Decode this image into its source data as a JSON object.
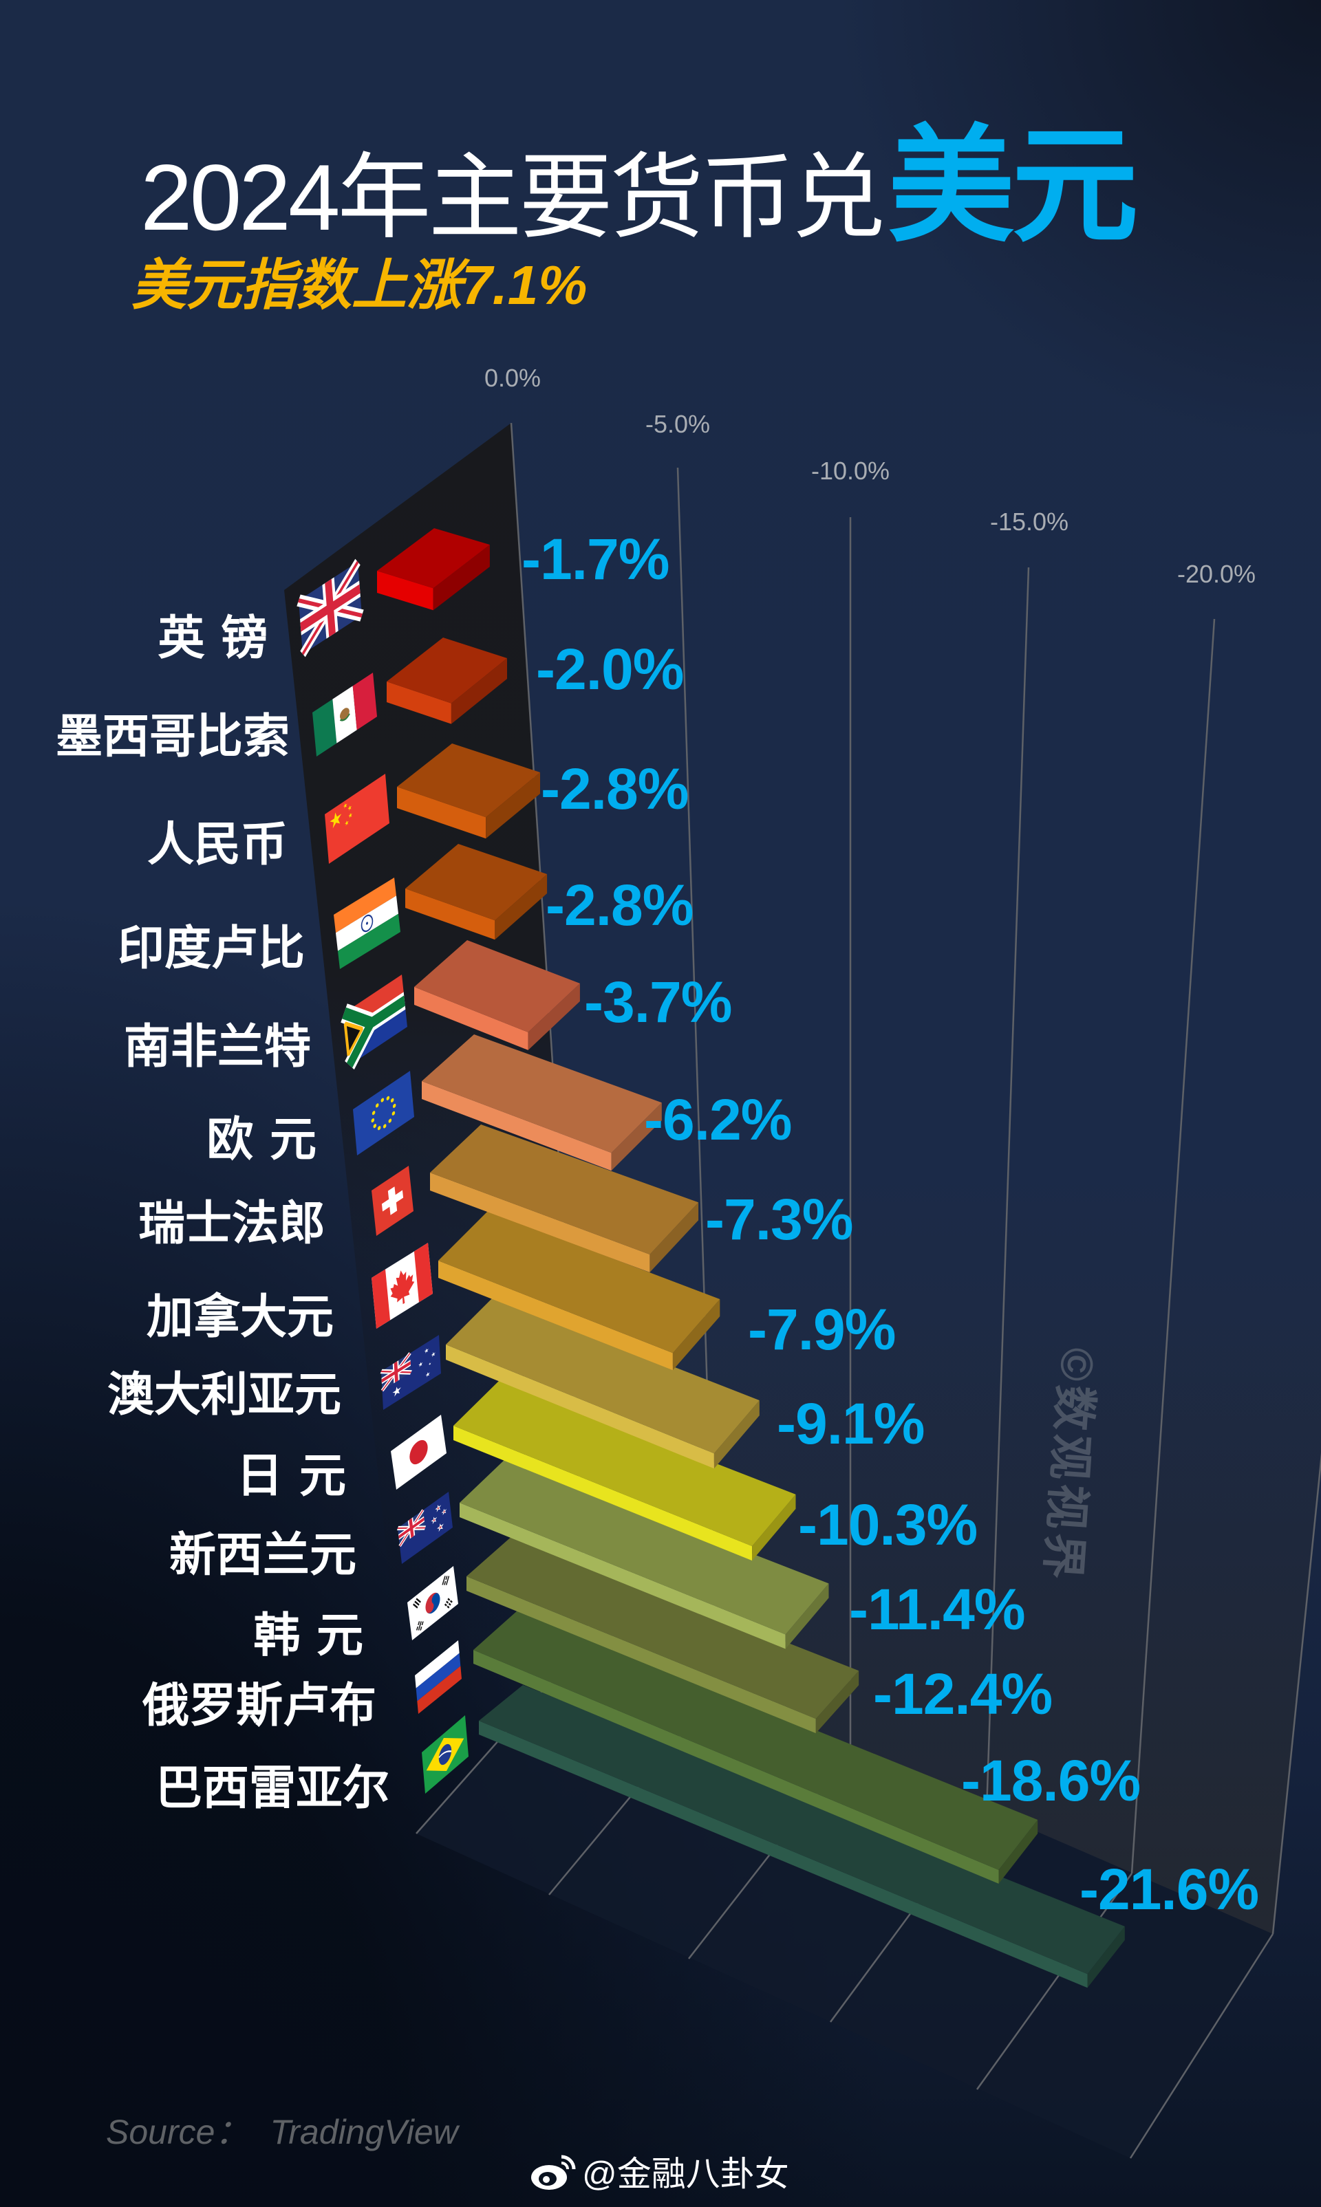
{
  "header": {
    "title_prefix": "2024年主要货币兑",
    "title_highlight": "美元",
    "subtitle": "美元指数上涨7.1%"
  },
  "chart_data": {
    "type": "bar",
    "orientation": "horizontal",
    "style": "3d",
    "title": "2024年主要货币兑美元",
    "subtitle": "美元指数上涨7.1%",
    "xlabel": "",
    "ylabel": "",
    "categories": [
      "英镑",
      "墨西哥比索",
      "人民币",
      "印度卢比",
      "南非兰特",
      "欧元",
      "瑞士法郎",
      "加拿大元",
      "澳大利亚元",
      "日元",
      "新西兰元",
      "韩元",
      "俄罗斯卢布",
      "巴西雷亚尔"
    ],
    "values": [
      -1.7,
      -2.0,
      -2.8,
      -2.8,
      -3.7,
      -6.2,
      -7.3,
      -7.9,
      -9.1,
      -10.3,
      -11.4,
      -12.4,
      -18.6,
      -21.6
    ],
    "x_ticks": [
      "0.0%",
      "-5.0%",
      "-10.0%",
      "-15.0%",
      "-20.0%"
    ],
    "xlim": [
      0,
      -25
    ],
    "grid": true,
    "legend": null,
    "data_labels": true,
    "source": "TradingView",
    "bars": [
      {
        "label": "英 镑",
        "value": -1.7,
        "value_label": "-1.7%",
        "flag": "GB",
        "flag_name": "uk",
        "colors": {
          "top": "#b00000",
          "front": "#e50000",
          "side": "#8e0000"
        }
      },
      {
        "label": "墨西哥比索",
        "value": -2.0,
        "value_label": "-2.0%",
        "flag": "MX",
        "flag_name": "mexico",
        "colors": {
          "top": "#a42a06",
          "front": "#d4400e",
          "side": "#8b2405"
        }
      },
      {
        "label": "人民币",
        "value": -2.8,
        "value_label": "-2.8%",
        "flag": "CN",
        "flag_name": "china",
        "colors": {
          "top": "#a1470a",
          "front": "#d55e0d",
          "side": "#8c3f07"
        }
      },
      {
        "label": "印度卢比",
        "value": -2.8,
        "value_label": "-2.8%",
        "flag": "IN",
        "flag_name": "india",
        "colors": {
          "top": "#a1470a",
          "front": "#d55e0d",
          "side": "#8c3f07"
        }
      },
      {
        "label": "南非兰特",
        "value": -3.7,
        "value_label": "-3.7%",
        "flag": "ZA",
        "flag_name": "south-africa",
        "colors": {
          "top": "#b8583a",
          "front": "#ee7a52",
          "side": "#9e4a31"
        }
      },
      {
        "label": "欧 元",
        "value": -6.2,
        "value_label": "-6.2%",
        "flag": "EU",
        "flag_name": "eu",
        "colors": {
          "top": "#b66b40",
          "front": "#ec8c5a",
          "side": "#9b5a36"
        }
      },
      {
        "label": "瑞士法郎",
        "value": -7.3,
        "value_label": "-7.3%",
        "flag": "CH",
        "flag_name": "switzerland",
        "colors": {
          "top": "#a6752b",
          "front": "#dc9a3d",
          "side": "#8b6224"
        }
      },
      {
        "label": "加拿大元",
        "value": -7.9,
        "value_label": "-7.9%",
        "flag": "CA",
        "flag_name": "canada",
        "colors": {
          "top": "#a97e21",
          "front": "#e0a42f",
          "side": "#8e691b"
        }
      },
      {
        "label": "澳大利亚元",
        "value": -9.1,
        "value_label": "-9.1%",
        "flag": "AU",
        "flag_name": "australia",
        "colors": {
          "top": "#a68c33",
          "front": "#d8bc46",
          "side": "#8c762b"
        }
      },
      {
        "label": "日 元",
        "value": -10.3,
        "value_label": "-10.3%",
        "flag": "JP",
        "flag_name": "japan",
        "colors": {
          "top": "#b5b018",
          "front": "#e8e41e",
          "side": "#9a9514"
        }
      },
      {
        "label": "新西兰元",
        "value": -11.4,
        "value_label": "-11.4%",
        "flag": "NZ",
        "flag_name": "new-zealand",
        "colors": {
          "top": "#7e8c42",
          "front": "#a5b65a",
          "side": "#6a7637"
        }
      },
      {
        "label": "韩 元",
        "value": -12.4,
        "value_label": "-12.4%",
        "flag": "KR",
        "flag_name": "south-korea",
        "colors": {
          "top": "#636b32",
          "front": "#838f42",
          "side": "#545b2a"
        }
      },
      {
        "label": "俄罗斯卢布",
        "value": -18.6,
        "value_label": "-18.6%",
        "flag": "RU",
        "flag_name": "russia",
        "colors": {
          "top": "#455f2e",
          "front": "#5a7c3a",
          "side": "#3a5026"
        }
      },
      {
        "label": "巴西雷亚尔",
        "value": -21.6,
        "value_label": "-21.6%",
        "flag": "BR",
        "flag_name": "brazil",
        "colors": {
          "top": "#22433a",
          "front": "#2c5a4b",
          "side": "#1d3a31"
        }
      }
    ]
  },
  "watermark": "©数观视界",
  "footer": {
    "source_label": "Source：",
    "source": "TradingView",
    "weibo_handle": "@金融八卦女"
  },
  "colors": {
    "title_highlight": "#00aeef",
    "subtitle": "#f7b500",
    "value_label": "#00aeef",
    "axis_label": "#a9adb3",
    "side_wall": "#18191d"
  }
}
